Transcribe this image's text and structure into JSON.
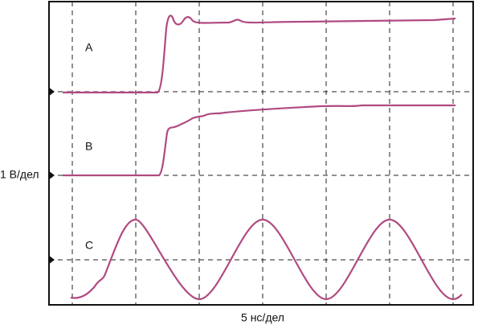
{
  "traces": [
    {
      "label": "A"
    },
    {
      "label": "B"
    },
    {
      "label": "C"
    }
  ],
  "y_scale": "1 В/дел",
  "x_scale": "5 нс/дел"
}
